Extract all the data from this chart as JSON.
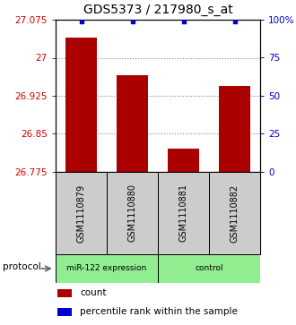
{
  "title": "GDS5373 / 217980_s_at",
  "samples": [
    "GSM1110879",
    "GSM1110880",
    "GSM1110881",
    "GSM1110882"
  ],
  "bar_values": [
    27.04,
    26.965,
    26.82,
    26.945
  ],
  "percentile_values": [
    99,
    99,
    99,
    99
  ],
  "ylim_left": [
    26.775,
    27.075
  ],
  "yticks_left": [
    26.775,
    26.85,
    26.925,
    27.0,
    27.075
  ],
  "ytick_labels_left": [
    "26.775",
    "26.85",
    "26.925",
    "27",
    "27.075"
  ],
  "ylim_right": [
    0,
    100
  ],
  "yticks_right": [
    0,
    25,
    50,
    75,
    100
  ],
  "ytick_labels_right": [
    "0",
    "25",
    "50",
    "75",
    "100%"
  ],
  "group_labels": [
    "miR-122 expression",
    "control"
  ],
  "group_color": "#90EE90",
  "bar_color": "#AA0000",
  "percentile_color": "#0000CC",
  "bar_width": 0.6,
  "sample_box_color": "#cccccc",
  "title_fontsize": 10,
  "tick_fontsize": 7.5,
  "sample_fontsize": 7,
  "legend_count_label": "count",
  "legend_pct_label": "percentile rank within the sample"
}
